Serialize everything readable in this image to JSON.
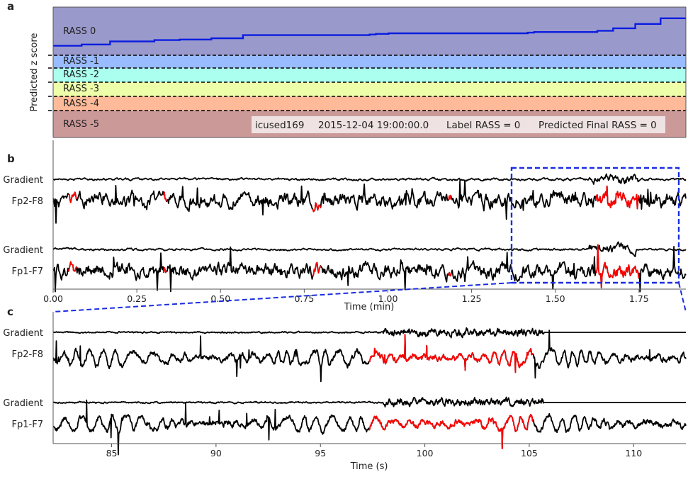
{
  "panels": {
    "a": "a",
    "b": "b",
    "c": "c"
  },
  "colors": {
    "rass": [
      "#9999cc",
      "#99bbff",
      "#aaffee",
      "#eeffaa",
      "#ffbb99",
      "#cc9999"
    ],
    "zscore_line": "#0a1de0",
    "eeg": "#000000",
    "highlight": "#ff0000",
    "zoom_box": "#1a2de0",
    "info_box_bg": "#efe2e2"
  },
  "chart_data": [
    {
      "type": "line",
      "panel": "a",
      "title": "",
      "xlabel": "",
      "ylabel": "Predicted z score",
      "bands": [
        "RASS 0",
        "RASS -1",
        "RASS -2",
        "RASS -3",
        "RASS -4",
        "RASS -5"
      ],
      "info_box": {
        "patient_id": "icused169",
        "timestamp": "2015-12-04 19:00:00.0",
        "label": "Label RASS = 0",
        "prediction": "Predicted Final RASS = 0"
      },
      "series": [
        {
          "name": "",
          "note_x_units": "fraction of time window",
          "x": [
            0.0,
            0.045,
            0.045,
            0.09,
            0.09,
            0.16,
            0.16,
            0.2,
            0.2,
            0.25,
            0.25,
            0.3,
            0.3,
            0.5,
            0.5,
            0.51,
            0.51,
            0.53,
            0.53,
            0.75,
            0.75,
            0.76,
            0.76,
            0.86,
            0.86,
            0.885,
            0.885,
            0.92,
            0.92,
            0.96,
            0.96,
            1.0
          ],
          "y": [
            0.62,
            0.62,
            0.6,
            0.6,
            0.55,
            0.55,
            0.53,
            0.53,
            0.52,
            0.52,
            0.5,
            0.5,
            0.45,
            0.45,
            0.44,
            0.44,
            0.43,
            0.43,
            0.42,
            0.42,
            0.41,
            0.41,
            0.4,
            0.4,
            0.38,
            0.38,
            0.34,
            0.34,
            0.27,
            0.27,
            0.18,
            0.18
          ]
        }
      ]
    },
    {
      "type": "line",
      "panel": "b",
      "title": "",
      "xlabel": "Time (min)",
      "ylabel": "",
      "xlim": [
        0.0,
        1.89
      ],
      "xticks": [
        "0.00",
        "0.25",
        "0.50",
        "0.75",
        "1.00",
        "1.25",
        "1.50",
        "1.75"
      ],
      "channels": [
        "Gradient",
        "Fp2-F8",
        "Gradient",
        "Fp1-F7"
      ],
      "highlight_segments_min": [
        [
          0.045,
          0.07
        ],
        [
          0.33,
          0.34
        ],
        [
          0.775,
          0.8
        ],
        [
          1.18,
          1.19
        ],
        [
          1.62,
          1.75
        ]
      ],
      "zoom_window_min": [
        1.37,
        1.87
      ]
    },
    {
      "type": "line",
      "panel": "c",
      "title": "",
      "xlabel": "Time (s)",
      "ylabel": "",
      "xlim": [
        82.2,
        112.5
      ],
      "xticks": [
        "85",
        "90",
        "95",
        "100",
        "105",
        "110"
      ],
      "channels": [
        "Gradient",
        "Fp2-F8",
        "Gradient",
        "Fp1-F7"
      ],
      "highlight_segments_s": [
        [
          97.3,
          105.2
        ]
      ],
      "gradient_activity_s": [
        [
          98.0,
          105.7
        ]
      ]
    }
  ]
}
